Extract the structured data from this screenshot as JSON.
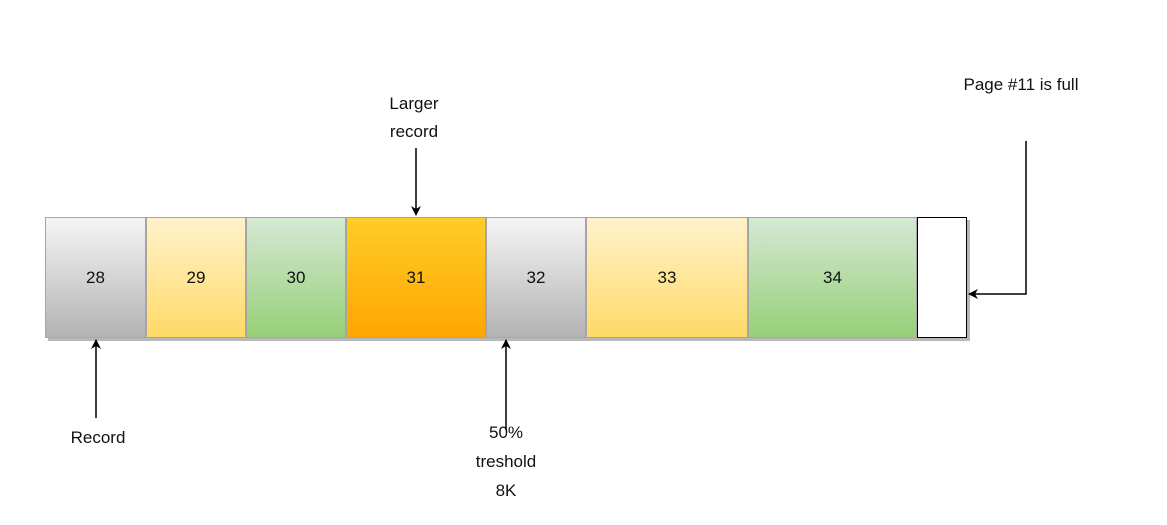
{
  "records": [
    {
      "label": "28",
      "gradient": [
        "#f5f5f5",
        "#b3b3b3"
      ]
    },
    {
      "label": "29",
      "gradient": [
        "#fff2cc",
        "#ffd966"
      ]
    },
    {
      "label": "30",
      "gradient": [
        "#d5e8d4",
        "#97d077"
      ]
    },
    {
      "label": "31",
      "gradient": [
        "#ffcd28",
        "#ffa500"
      ]
    },
    {
      "label": "32",
      "gradient": [
        "#f5f5f5",
        "#b3b3b3"
      ]
    },
    {
      "label": "33",
      "gradient": [
        "#fff2cc",
        "#ffd966"
      ]
    },
    {
      "label": "34",
      "gradient": [
        "#d5e8d4",
        "#97d077"
      ]
    },
    {
      "label": "",
      "gradient": [
        "#ffffff",
        "#ffffff"
      ]
    }
  ],
  "labels": {
    "larger_record": "Larger\nrecord",
    "page_full": "Page #11 is full",
    "record": "Record",
    "threshold": "50%\ntreshold\n8K"
  }
}
